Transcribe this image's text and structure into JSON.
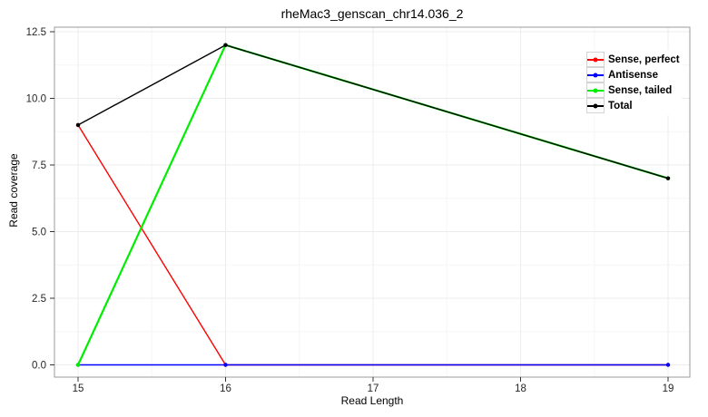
{
  "chart_data": {
    "type": "line",
    "title": "rheMac3_genscan_chr14.036_2",
    "xlabel": "Read Length",
    "ylabel": "Read coverage",
    "x": [
      15,
      16,
      19
    ],
    "series": [
      {
        "name": "Sense, perfect",
        "color": "#ff0000",
        "values": [
          9,
          0,
          0
        ]
      },
      {
        "name": "Antisense",
        "color": "#0000ff",
        "values": [
          0,
          0,
          0
        ]
      },
      {
        "name": "Sense, tailed",
        "color": "#00ee00",
        "values": [
          0,
          12,
          7
        ]
      },
      {
        "name": "Total",
        "color": "#000000",
        "values": [
          9,
          12,
          7
        ]
      }
    ],
    "xticks": {
      "values": [
        15,
        16,
        17,
        18,
        19
      ],
      "labels": [
        "15",
        "16",
        "17",
        "18",
        "19"
      ]
    },
    "yticks": {
      "values": [
        0,
        2.5,
        5,
        7.5,
        10,
        12.5
      ],
      "labels": [
        "0.0",
        "2.5",
        "5.0",
        "7.5",
        "10.0",
        "12.5"
      ]
    },
    "xlim": [
      14.84,
      19.15
    ],
    "ylim": [
      -0.46,
      12.67
    ],
    "grid": true,
    "legend_position": "right-inside",
    "legend_entries": [
      "Sense, perfect",
      "Antisense",
      "Sense, tailed",
      "Total"
    ],
    "colors": {
      "background": "#ffffff",
      "panel_border": "#9b9b9b",
      "grid_major": "#ececec",
      "grid_minor": "#f6f6f6",
      "tick": "#333333",
      "tick_label": "#262626"
    }
  }
}
